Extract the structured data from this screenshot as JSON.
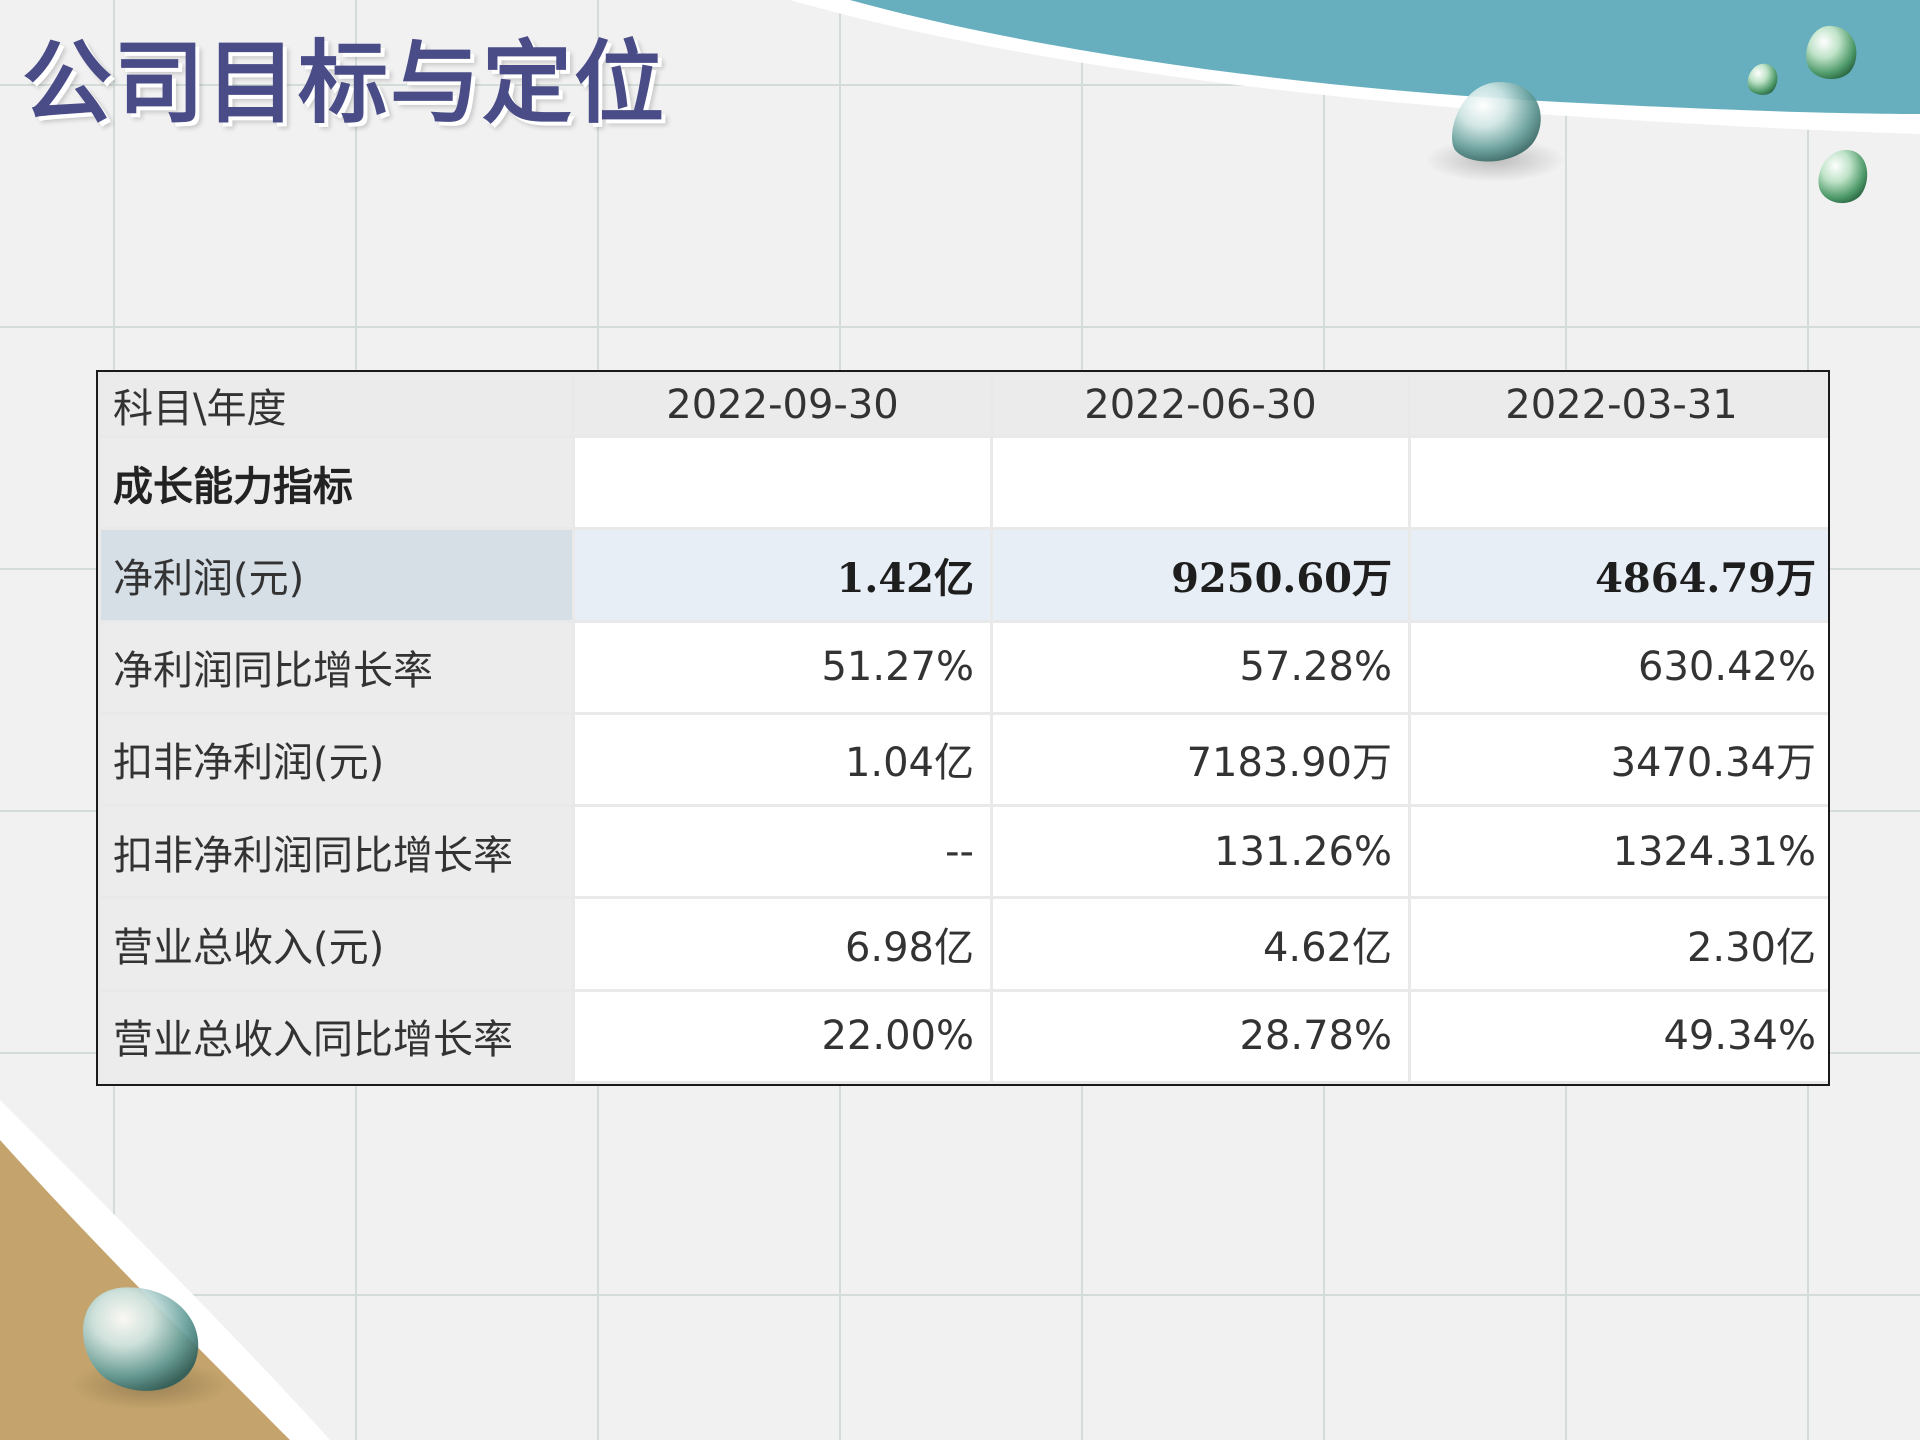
{
  "slide": {
    "title": "公司目标与定位"
  },
  "table": {
    "header": [
      "科目\\年度",
      "2022-09-30",
      "2022-06-30",
      "2022-03-31"
    ],
    "rows": [
      {
        "label": "成长能力指标",
        "values": [
          "",
          "",
          ""
        ],
        "style": "section"
      },
      {
        "label": "净利润(元)",
        "values": [
          "1.42亿",
          "9250.60万",
          "4864.79万"
        ],
        "style": "bold"
      },
      {
        "label": "净利润同比增长率",
        "values": [
          "51.27%",
          "57.28%",
          "630.42%"
        ],
        "style": "normal"
      },
      {
        "label": "扣非净利润(元)",
        "values": [
          "1.04亿",
          "7183.90万",
          "3470.34万"
        ],
        "style": "normal"
      },
      {
        "label": "扣非净利润同比增长率",
        "values": [
          "--",
          "131.26%",
          "1324.31%"
        ],
        "style": "normal"
      },
      {
        "label": "营业总收入(元)",
        "values": [
          "6.98亿",
          "4.62亿",
          "2.30亿"
        ],
        "style": "normal"
      },
      {
        "label": "营业总收入同比增长率",
        "values": [
          "22.00%",
          "28.78%",
          "49.34%"
        ],
        "style": "normal"
      }
    ]
  },
  "decor": {
    "colors": {
      "accent_teal": "#67afbf",
      "accent_gold": "#c4a46c",
      "title": "#4a4c87",
      "grid": "#d3dcd8"
    },
    "icons": [
      "water-drop-icon"
    ]
  }
}
